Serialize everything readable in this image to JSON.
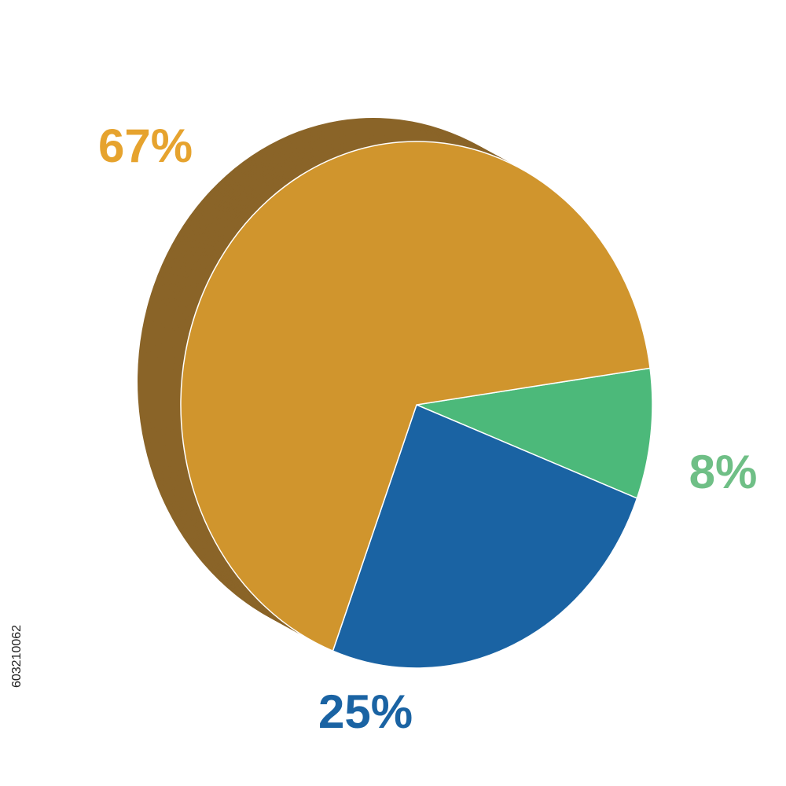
{
  "chart_data": {
    "type": "pie",
    "values": [
      8,
      25,
      67
    ],
    "value_labels": [
      "8%",
      "25%",
      "67%"
    ],
    "colors": [
      "#4cb97a",
      "#1a63a3",
      "#d0952d"
    ],
    "side_colors": [
      "#2f9a5d",
      "#0e4674",
      "#8a6428"
    ],
    "label_colors": [
      "#6fbf86",
      "#1a63a3",
      "#e6a32e"
    ]
  },
  "image_id": "603210062"
}
